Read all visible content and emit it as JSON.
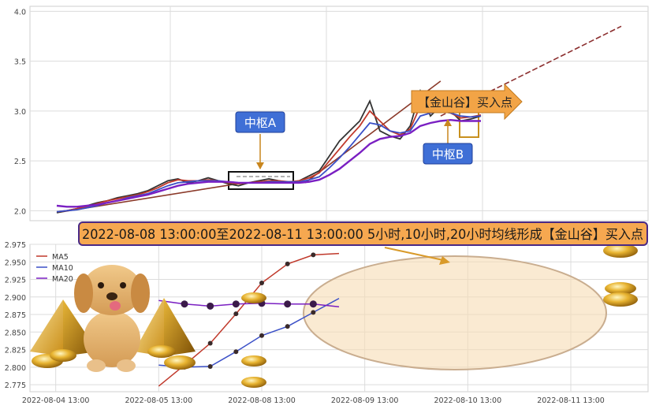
{
  "chart_data": [
    {
      "type": "line",
      "panel": "upper-overview",
      "ylim": [
        1.9,
        4.05
      ],
      "yticks": [
        "4.0",
        "3.5",
        "3.0",
        "2.5",
        "2.0"
      ],
      "grid": true,
      "annotations": {
        "center_a": "中枢A",
        "center_b": "中枢B",
        "buy_point": "【金山谷】买入点"
      },
      "trend_lines": [
        {
          "from": [
            0.0,
            1.98
          ],
          "to": [
            0.32,
            2.27
          ]
        },
        {
          "from": [
            0.44,
            2.28
          ],
          "to": [
            0.68,
            3.3
          ]
        },
        {
          "from": [
            0.68,
            2.95
          ],
          "to": [
            1.0,
            3.85
          ]
        }
      ],
      "series": [
        {
          "role": "close",
          "color": "#333333",
          "values": [
            1.98,
            2.0,
            2.02,
            2.05,
            2.08,
            2.1,
            2.13,
            2.15,
            2.17,
            2.2,
            2.25,
            2.3,
            2.32,
            2.28,
            2.3,
            2.33,
            2.3,
            2.27,
            2.25,
            2.28,
            2.3,
            2.32,
            2.3,
            2.28,
            2.3,
            2.35,
            2.4,
            2.55,
            2.7,
            2.8,
            2.9,
            3.1,
            2.8,
            2.75,
            2.72,
            2.85,
            3.2,
            2.95,
            3.05,
            3.0,
            2.9,
            2.92,
            2.95
          ]
        },
        {
          "role": "ma5",
          "color": "#c0392b",
          "values": [
            1.99,
            2.0,
            2.02,
            2.04,
            2.07,
            2.1,
            2.12,
            2.14,
            2.16,
            2.19,
            2.23,
            2.28,
            2.31,
            2.3,
            2.3,
            2.31,
            2.3,
            2.28,
            2.27,
            2.28,
            2.29,
            2.3,
            2.3,
            2.29,
            2.3,
            2.33,
            2.38,
            2.5,
            2.62,
            2.74,
            2.85,
            3.0,
            2.9,
            2.8,
            2.76,
            2.82,
            3.05,
            3.0,
            3.0,
            2.98,
            2.93,
            2.94,
            2.96
          ]
        },
        {
          "role": "ma10",
          "color": "#3a4fc7",
          "values": [
            1.99,
            2.0,
            2.01,
            2.03,
            2.05,
            2.08,
            2.1,
            2.13,
            2.15,
            2.17,
            2.21,
            2.25,
            2.28,
            2.29,
            2.3,
            2.3,
            2.3,
            2.29,
            2.28,
            2.28,
            2.28,
            2.29,
            2.29,
            2.29,
            2.29,
            2.31,
            2.34,
            2.43,
            2.53,
            2.64,
            2.76,
            2.88,
            2.86,
            2.8,
            2.78,
            2.8,
            2.95,
            2.98,
            3.0,
            2.98,
            2.95,
            2.94,
            2.95
          ]
        },
        {
          "role": "ma20",
          "color": "#7a1fc2",
          "values": [
            2.05,
            2.04,
            2.04,
            2.05,
            2.06,
            2.08,
            2.1,
            2.12,
            2.14,
            2.16,
            2.19,
            2.22,
            2.25,
            2.27,
            2.28,
            2.29,
            2.29,
            2.29,
            2.28,
            2.28,
            2.28,
            2.28,
            2.28,
            2.28,
            2.28,
            2.29,
            2.31,
            2.36,
            2.42,
            2.5,
            2.58,
            2.67,
            2.72,
            2.74,
            2.75,
            2.78,
            2.85,
            2.88,
            2.9,
            2.91,
            2.9,
            2.9,
            2.9
          ]
        }
      ]
    },
    {
      "type": "line",
      "panel": "lower-detail",
      "banner": "2022-08-08 13:00:00至2022-08-11 13:00:00 5小时,10小时,20小时均线形成【金山谷】买入点",
      "xlabels": [
        "2022-08-04 13:00",
        "2022-08-05 13:00",
        "2022-08-08 13:00",
        "2022-08-09 13:00",
        "2022-08-10 13:00",
        "2022-08-11 13:00"
      ],
      "ylim": [
        2.765,
        2.975
      ],
      "yticks": [
        "2.975",
        "2.950",
        "2.925",
        "2.900",
        "2.875",
        "2.850",
        "2.825",
        "2.800",
        "2.775"
      ],
      "grid": true,
      "legend_position": "top-left",
      "x": [
        2.0,
        2.5,
        3.0,
        3.5,
        4.0,
        4.5,
        5.0,
        5.5
      ],
      "series": [
        {
          "name": "MA5",
          "color": "#c0392b",
          "values": [
            2.773,
            2.803,
            2.834,
            2.876,
            2.92,
            2.947,
            2.96,
            2.962
          ]
        },
        {
          "name": "MA10",
          "color": "#3a4fc7",
          "values": [
            2.803,
            2.8,
            2.801,
            2.822,
            2.845,
            2.858,
            2.878,
            2.898
          ]
        },
        {
          "name": "MA20",
          "color": "#7a1fc2",
          "values": [
            2.895,
            2.89,
            2.887,
            2.89,
            2.891,
            2.89,
            2.89,
            2.886
          ]
        }
      ]
    }
  ]
}
